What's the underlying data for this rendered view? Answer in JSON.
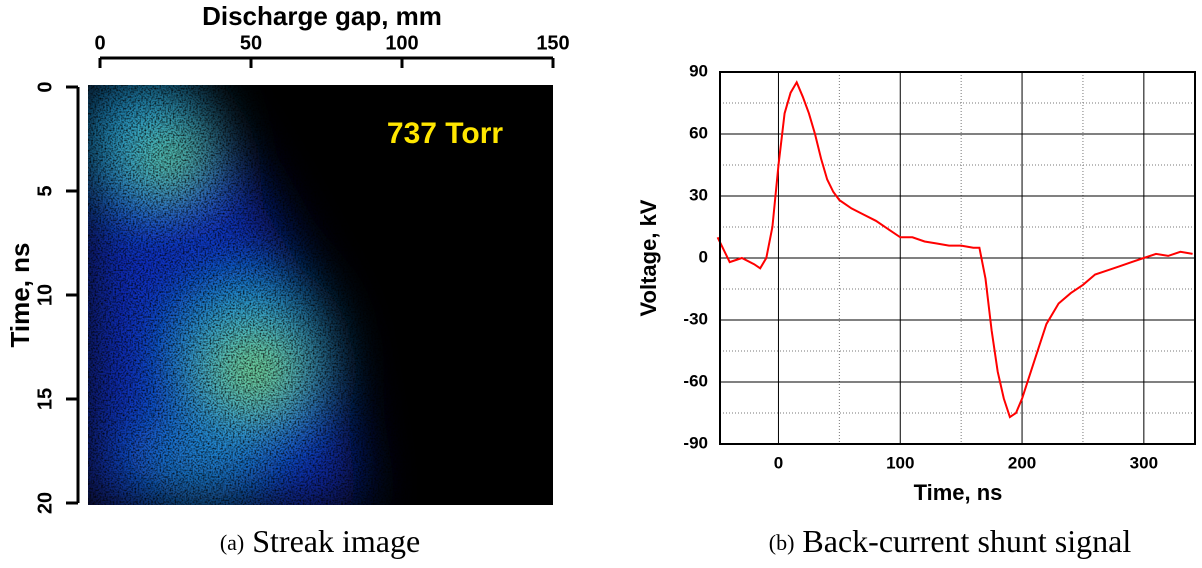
{
  "chart_data": [
    {
      "type": "image",
      "xlabel": "Discharge gap, mm",
      "ylabel": "Time, ns",
      "annotation": "737 Torr",
      "caption_label": "(a)",
      "caption": "Streak image",
      "xlim": [
        0,
        150
      ],
      "xticks": [
        0,
        50,
        100,
        150
      ],
      "x_axis_position": "top",
      "ylim": [
        0,
        20
      ],
      "yticks": [
        0,
        5,
        10,
        15,
        20
      ],
      "y_reversed": true
    },
    {
      "type": "line",
      "xlabel": "Time, ns",
      "ylabel": "Voltage, kV",
      "caption_label": "(b)",
      "caption": "Back-current shunt signal",
      "color": "#ff0000",
      "x": [
        -50,
        -40,
        -30,
        -20,
        -15,
        -10,
        -5,
        0,
        5,
        10,
        15,
        20,
        25,
        30,
        35,
        40,
        45,
        50,
        60,
        70,
        80,
        90,
        100,
        110,
        120,
        130,
        140,
        150,
        160,
        165,
        170,
        175,
        180,
        185,
        190,
        195,
        200,
        210,
        220,
        230,
        240,
        250,
        260,
        270,
        280,
        290,
        300,
        310,
        320,
        330,
        340
      ],
      "values": [
        10,
        -2,
        0,
        -3,
        -5,
        0,
        15,
        45,
        70,
        80,
        85,
        78,
        70,
        60,
        48,
        38,
        32,
        28,
        24,
        21,
        18,
        14,
        10,
        10,
        8,
        7,
        6,
        6,
        5,
        5,
        -10,
        -35,
        -55,
        -68,
        -77,
        -75,
        -68,
        -50,
        -32,
        -22,
        -17,
        -13,
        -8,
        -6,
        -4,
        -2,
        0,
        2,
        1,
        3,
        2
      ],
      "xlim": [
        -48,
        342
      ],
      "xticks": [
        0,
        100,
        200,
        300
      ],
      "ylim": [
        -90,
        90
      ],
      "yticks": [
        -90,
        -60,
        -30,
        0,
        30,
        60,
        90
      ],
      "grid": true,
      "minor_xticks": [
        50,
        150,
        250
      ],
      "minor_yticks": [
        -75,
        -45,
        -15,
        15,
        45,
        75
      ]
    }
  ]
}
